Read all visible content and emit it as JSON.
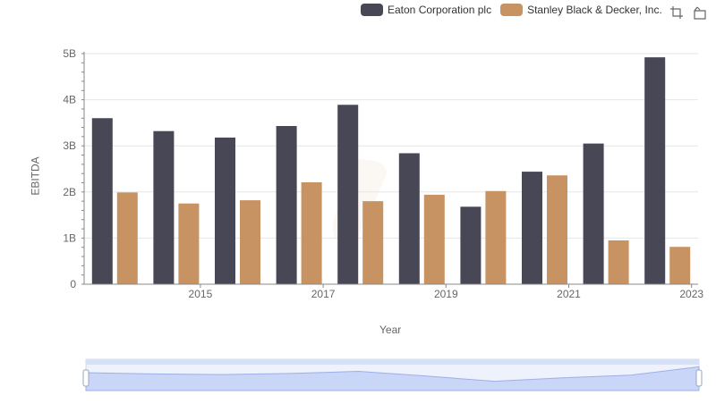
{
  "legend": [
    {
      "name": "Eaton Corporation plc",
      "color": "#474755"
    },
    {
      "name": "Stanley Black & Decker, Inc.",
      "color": "#c89362"
    }
  ],
  "toolbar": {
    "icons": [
      "zoom-select-icon",
      "zoom-reset-icon"
    ]
  },
  "chart_data": {
    "type": "bar",
    "x": [
      2014,
      2015,
      2016,
      2017,
      2018,
      2019,
      2020,
      2021,
      2022,
      2023
    ],
    "x_tick_labels": [
      "2015",
      "2017",
      "2019",
      "2021",
      "2023"
    ],
    "xlabel": "Year",
    "ylabel": "EBITDA",
    "ylim": [
      0,
      5000000000
    ],
    "y_tick_labels": [
      "0",
      "1B",
      "2B",
      "3B",
      "4B",
      "5B"
    ],
    "grid": true,
    "legend_position": "top-right",
    "series": [
      {
        "name": "Eaton Corporation plc",
        "color": "#474755",
        "values": [
          3600000000,
          3320000000,
          3180000000,
          3430000000,
          3890000000,
          2840000000,
          1680000000,
          2440000000,
          3050000000,
          4920000000
        ]
      },
      {
        "name": "Stanley Black & Decker, Inc.",
        "color": "#c89362",
        "values": [
          1990000000,
          1750000000,
          1820000000,
          2210000000,
          1800000000,
          1940000000,
          2020000000,
          2360000000,
          950000000,
          810000000
        ]
      }
    ]
  }
}
